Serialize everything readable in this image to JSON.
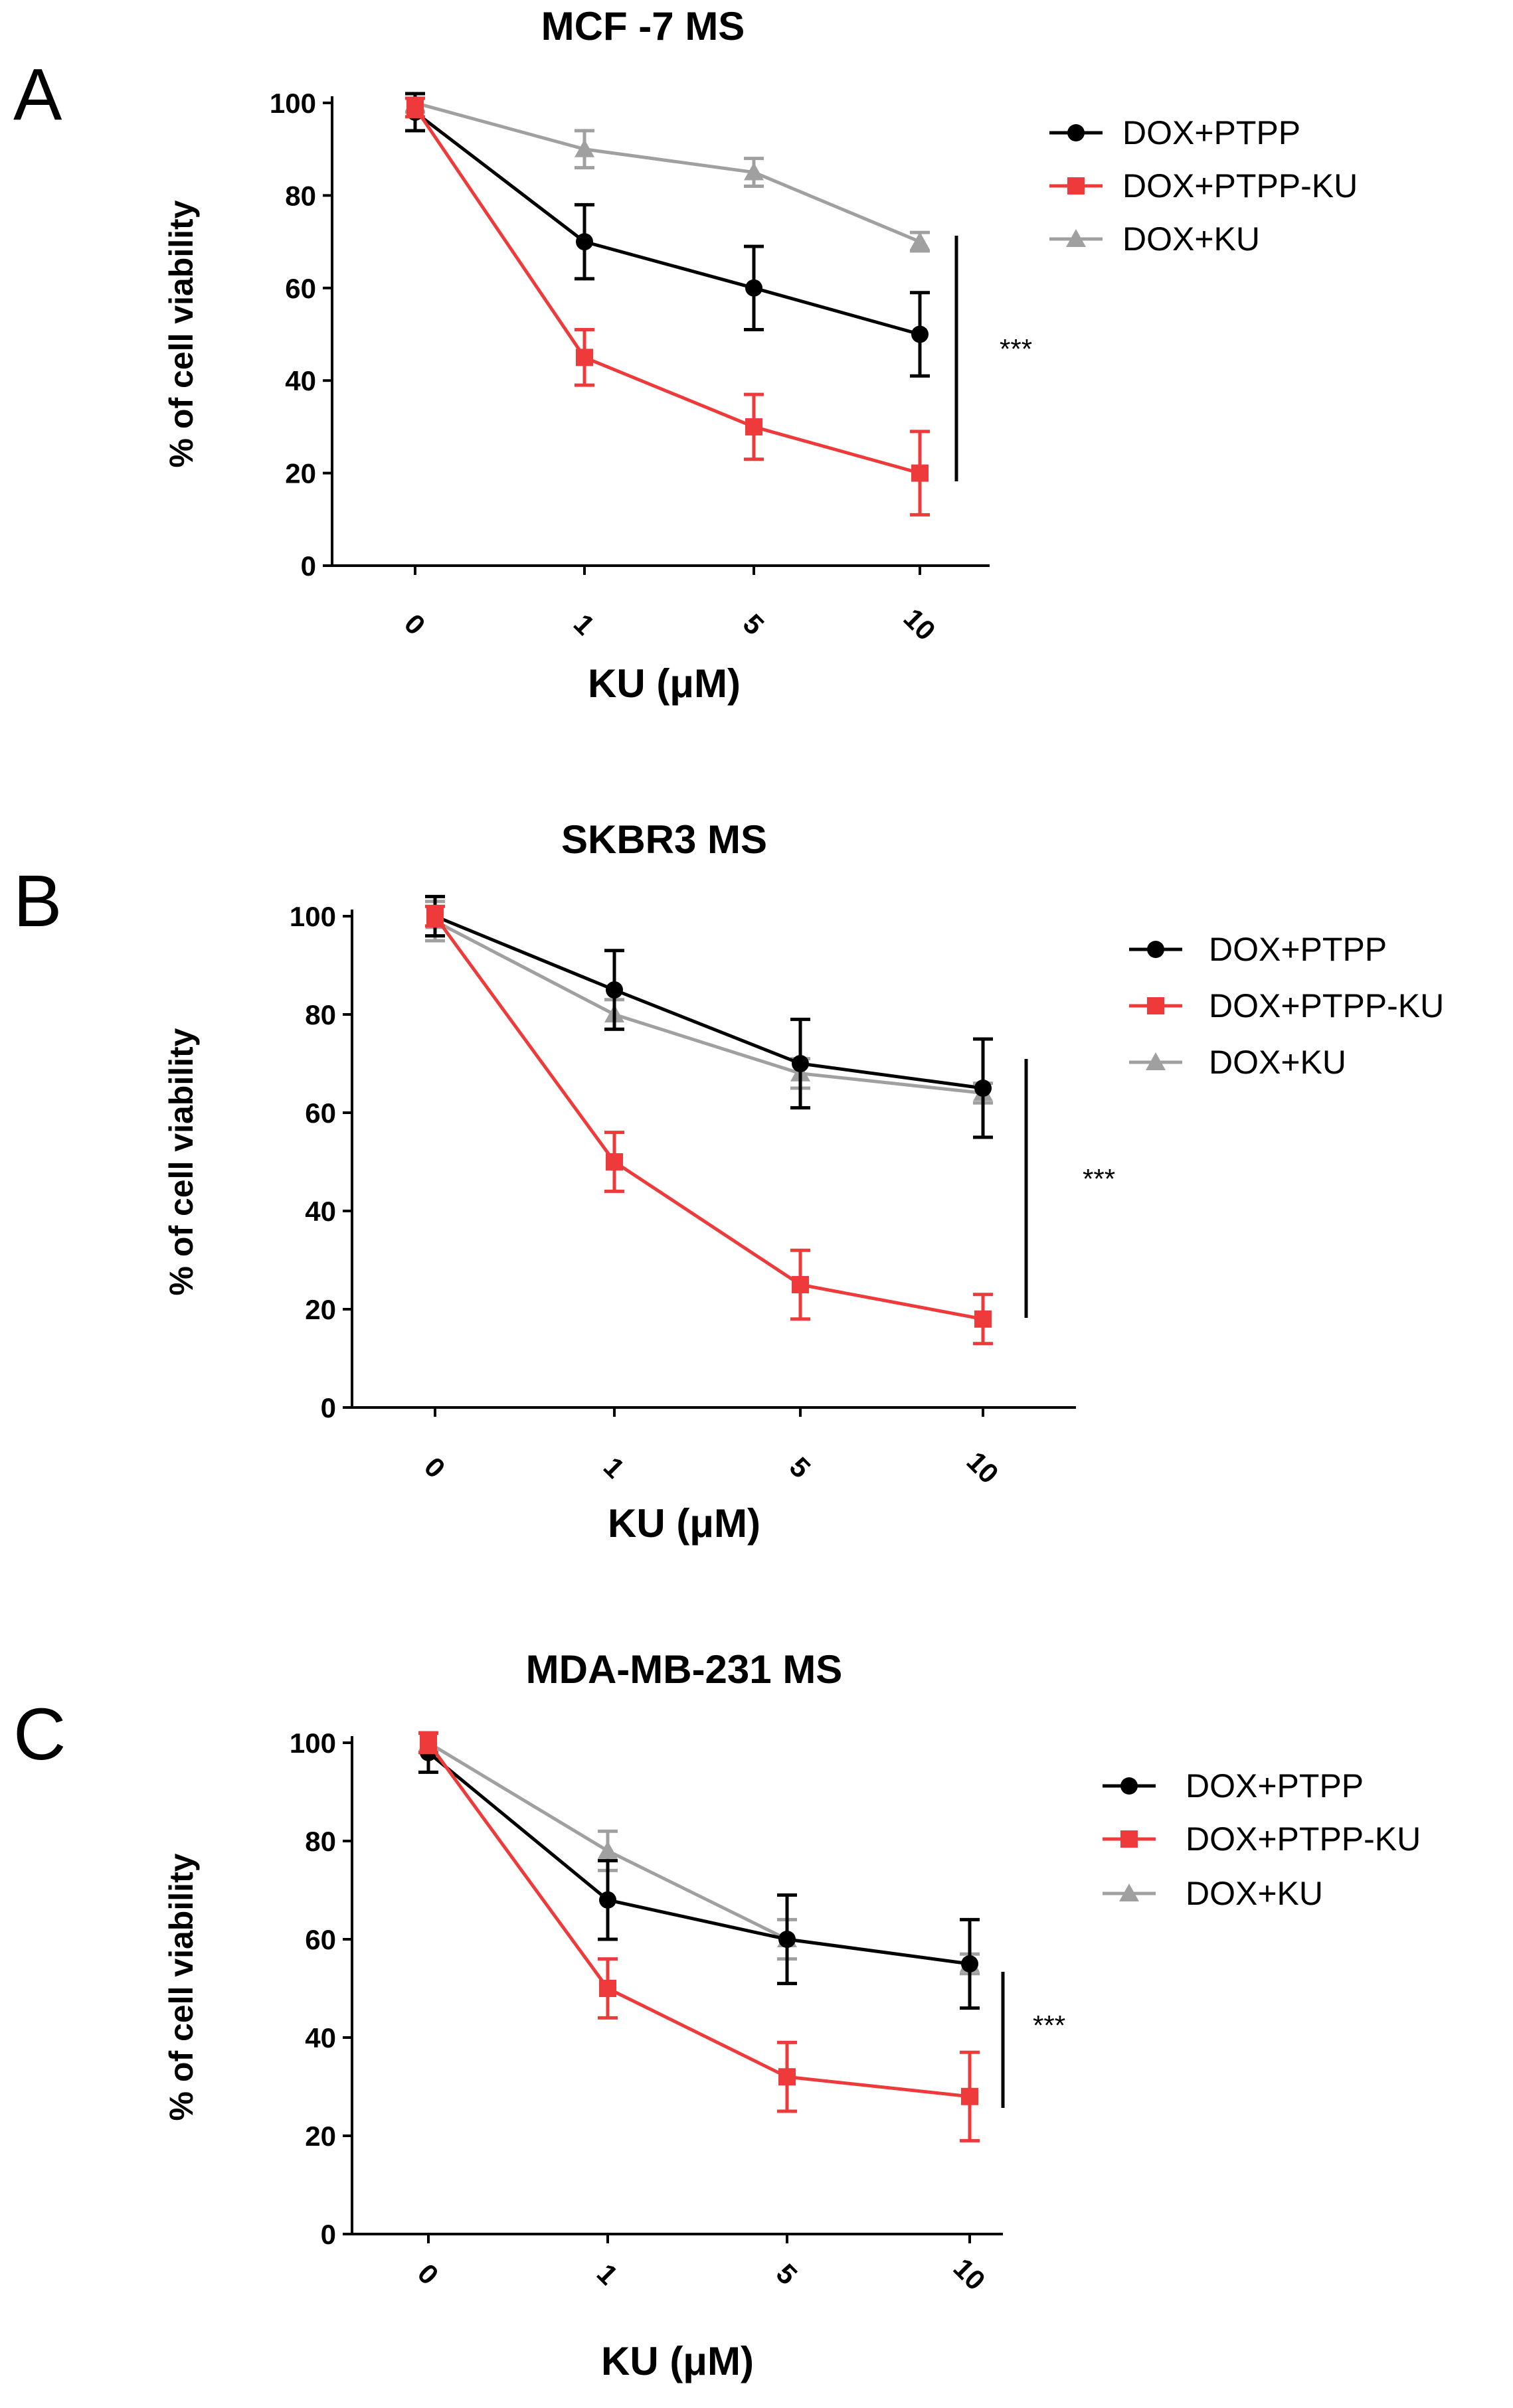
{
  "colors": {
    "DOX+PTPP": "#000000",
    "DOX+PTPP-KU": "#ee3a3a",
    "DOX+KU": "#a0a0a0"
  },
  "chart_data": [
    {
      "type": "line",
      "panel": "A",
      "title": "MCF -7 MS",
      "xlabel": "KU (μM)",
      "ylabel": "% of cell viability",
      "categories": [
        "0",
        "1",
        "5",
        "10"
      ],
      "ylim": [
        0,
        100
      ],
      "yticks": [
        0,
        20,
        40,
        60,
        80,
        100
      ],
      "series": [
        {
          "name": "DOX+PTPP",
          "marker": "circle",
          "values": [
            98,
            70,
            60,
            50
          ],
          "errors": [
            4,
            8,
            9,
            9
          ]
        },
        {
          "name": "DOX+PTPP-KU",
          "marker": "square",
          "values": [
            99,
            45,
            30,
            20
          ],
          "errors": [
            2,
            6,
            7,
            9
          ]
        },
        {
          "name": "DOX+KU",
          "marker": "triangle",
          "values": [
            100,
            90,
            85,
            70
          ],
          "errors": [
            2,
            4,
            3,
            2
          ]
        }
      ],
      "significance": "***"
    },
    {
      "type": "line",
      "panel": "B",
      "title": "SKBR3 MS",
      "xlabel": "KU (μM)",
      "ylabel": "% of cell viability",
      "categories": [
        "0",
        "1",
        "5",
        "10"
      ],
      "ylim": [
        0,
        100
      ],
      "yticks": [
        0,
        20,
        40,
        60,
        80,
        100
      ],
      "series": [
        {
          "name": "DOX+PTPP",
          "marker": "circle",
          "values": [
            100,
            85,
            70,
            65
          ],
          "errors": [
            4,
            8,
            9,
            10
          ]
        },
        {
          "name": "DOX+PTPP-KU",
          "marker": "square",
          "values": [
            100,
            50,
            25,
            18
          ],
          "errors": [
            2,
            6,
            7,
            5
          ]
        },
        {
          "name": "DOX+KU",
          "marker": "triangle",
          "values": [
            99,
            80,
            68,
            64
          ],
          "errors": [
            4,
            3,
            3,
            2
          ]
        }
      ],
      "significance": "***"
    },
    {
      "type": "line",
      "panel": "C",
      "title": "MDA-MB-231 MS",
      "xlabel": "KU (μM)",
      "ylabel": "% of cell viability",
      "categories": [
        "0",
        "1",
        "5",
        "10"
      ],
      "ylim": [
        0,
        100
      ],
      "yticks": [
        0,
        20,
        40,
        60,
        80,
        100
      ],
      "series": [
        {
          "name": "DOX+PTPP",
          "marker": "circle",
          "values": [
            98,
            68,
            60,
            55
          ],
          "errors": [
            4,
            8,
            9,
            9
          ]
        },
        {
          "name": "DOX+PTPP-KU",
          "marker": "square",
          "values": [
            100,
            50,
            32,
            28
          ],
          "errors": [
            2,
            6,
            7,
            9
          ]
        },
        {
          "name": "DOX+KU",
          "marker": "triangle",
          "values": [
            100,
            78,
            60,
            55
          ],
          "errors": [
            2,
            4,
            4,
            2
          ]
        }
      ],
      "significance": "***"
    }
  ]
}
